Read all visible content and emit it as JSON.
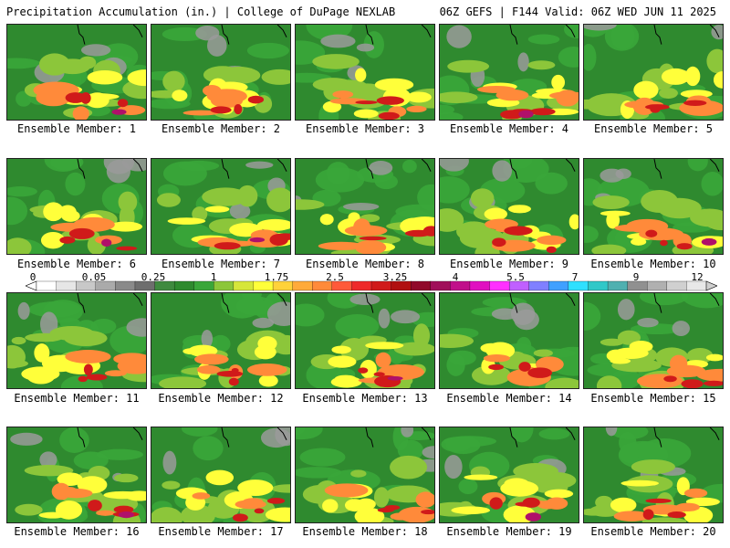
{
  "header": {
    "title": "Precipitation Accumulation (in.) | College of DuPage NEXLAB",
    "subtitle": "06Z GEFS | F144 Valid: 06Z WED JUN 11 2025"
  },
  "panels": [
    {
      "label": "Ensemble Member: 1"
    },
    {
      "label": "Ensemble Member: 2"
    },
    {
      "label": "Ensemble Member: 3"
    },
    {
      "label": "Ensemble Member: 4"
    },
    {
      "label": "Ensemble Member: 5"
    },
    {
      "label": "Ensemble Member: 6"
    },
    {
      "label": "Ensemble Member: 7"
    },
    {
      "label": "Ensemble Member: 8"
    },
    {
      "label": "Ensemble Member: 9"
    },
    {
      "label": "Ensemble Member: 10"
    },
    {
      "label": "Ensemble Member: 11"
    },
    {
      "label": "Ensemble Member: 12"
    },
    {
      "label": "Ensemble Member: 13"
    },
    {
      "label": "Ensemble Member: 14"
    },
    {
      "label": "Ensemble Member: 15"
    },
    {
      "label": "Ensemble Member: 16"
    },
    {
      "label": "Ensemble Member: 17"
    },
    {
      "label": "Ensemble Member: 18"
    },
    {
      "label": "Ensemble Member: 19"
    },
    {
      "label": "Ensemble Member: 20"
    }
  ],
  "colorbar": {
    "tick_labels": [
      "0",
      "0.05",
      "0.25",
      "1",
      "1.75",
      "2.5",
      "3.25",
      "4",
      "5.5",
      "7",
      "9",
      "12"
    ],
    "colors": [
      "#ffffff",
      "#e6e6e6",
      "#c8c8c8",
      "#aaaaaa",
      "#8a8a8a",
      "#6e6e6e",
      "#3f8a3f",
      "#2f8a2f",
      "#3aa63a",
      "#8cc63a",
      "#d6e63a",
      "#ffff3a",
      "#ffd23a",
      "#ffaa3a",
      "#ff8a3a",
      "#ff5a3a",
      "#ee2a2a",
      "#d01a1a",
      "#b01010",
      "#900a2a",
      "#a0105a",
      "#c0108a",
      "#e010c0",
      "#ff30ff",
      "#c060ff",
      "#8080ff",
      "#40a0ff",
      "#30e0ff",
      "#30c8c8",
      "#50b0b0",
      "#909090",
      "#b0b0b0",
      "#d0d0d0",
      "#e8e8e8"
    ]
  }
}
